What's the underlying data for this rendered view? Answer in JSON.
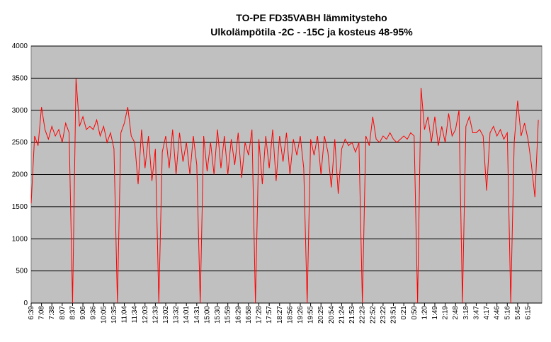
{
  "chart_data": {
    "type": "line",
    "title": "TO-PE FD35VABH lämmitysteho",
    "subtitle": "Ulkolämpötila -2C - -15C ja kosteus 48-95%",
    "categories": [
      "6:39",
      null,
      null,
      "7:08",
      null,
      null,
      "7:38",
      null,
      null,
      "8:07",
      null,
      null,
      "8:37",
      null,
      null,
      "9:06",
      null,
      null,
      "9:36",
      null,
      null,
      "10:05",
      null,
      null,
      "10:35",
      null,
      null,
      "11:04",
      null,
      null,
      "11:34",
      null,
      null,
      "12:03",
      null,
      null,
      "12:33",
      null,
      null,
      "13:02",
      null,
      null,
      "13:32",
      null,
      null,
      "14:01",
      null,
      null,
      "14:31",
      null,
      null,
      "15:00",
      null,
      null,
      "15:30",
      null,
      null,
      "15:59",
      null,
      null,
      "16:29",
      null,
      null,
      "16:58",
      null,
      null,
      "17:28",
      null,
      null,
      "17:57",
      null,
      null,
      "18:27",
      null,
      null,
      "18:56",
      null,
      null,
      "19:26",
      null,
      null,
      "19:55",
      null,
      null,
      "20:25",
      null,
      null,
      "20:54",
      null,
      null,
      "21:24",
      null,
      null,
      "21:53",
      null,
      null,
      "22:23",
      null,
      null,
      "22:52",
      null,
      null,
      "23:22",
      null,
      null,
      "23:51",
      null,
      null,
      "0:21",
      null,
      null,
      "0:50",
      null,
      null,
      "1:20",
      null,
      null,
      "1:49",
      null,
      null,
      "2:19",
      null,
      null,
      "2:48",
      null,
      null,
      "3:18",
      null,
      null,
      "3:47",
      null,
      null,
      "4:17",
      null,
      null,
      "4:46",
      null,
      null,
      "5:16",
      null,
      null,
      "5:45",
      null,
      null,
      "6:15",
      null,
      null,
      null
    ],
    "series": [
      {
        "name": "lämmitysteho",
        "color": "#ff0000",
        "values": [
          1550,
          2600,
          2450,
          3050,
          2700,
          2550,
          2750,
          2600,
          2700,
          2500,
          2800,
          2650,
          0,
          3500,
          2750,
          2900,
          2700,
          2750,
          2700,
          2850,
          2600,
          2750,
          2500,
          2650,
          2400,
          0,
          2650,
          2800,
          3050,
          2600,
          2500,
          1850,
          2700,
          2100,
          2600,
          1900,
          2400,
          0,
          2350,
          2600,
          2100,
          2700,
          2000,
          2650,
          2200,
          2500,
          2000,
          2600,
          2150,
          0,
          2600,
          2050,
          2500,
          2000,
          2700,
          2100,
          2600,
          2000,
          2550,
          2150,
          2650,
          1950,
          2500,
          2300,
          2700,
          0,
          2550,
          1850,
          2600,
          2100,
          2700,
          1900,
          2600,
          2200,
          2650,
          2000,
          2550,
          2300,
          2600,
          2100,
          0,
          2550,
          2300,
          2600,
          2000,
          2600,
          2350,
          1800,
          2550,
          1700,
          2400,
          2550,
          2450,
          2500,
          2350,
          2500,
          0,
          2600,
          2450,
          2900,
          2550,
          2500,
          2600,
          2550,
          2650,
          2550,
          2500,
          2550,
          2600,
          2550,
          2650,
          2600,
          0,
          3350,
          2700,
          2900,
          2500,
          2900,
          2450,
          2750,
          2500,
          2950,
          2600,
          2700,
          3000,
          0,
          2750,
          2900,
          2650,
          2650,
          2700,
          2600,
          1750,
          2650,
          2750,
          2600,
          2700,
          2550,
          2650,
          0,
          2500,
          3150,
          2600,
          2800,
          2550,
          2150,
          1650,
          2850
        ]
      }
    ],
    "ylim": [
      0,
      4000
    ],
    "yticks": [
      0,
      500,
      1000,
      1500,
      2000,
      2500,
      3000,
      3500,
      4000
    ],
    "grid": true
  }
}
